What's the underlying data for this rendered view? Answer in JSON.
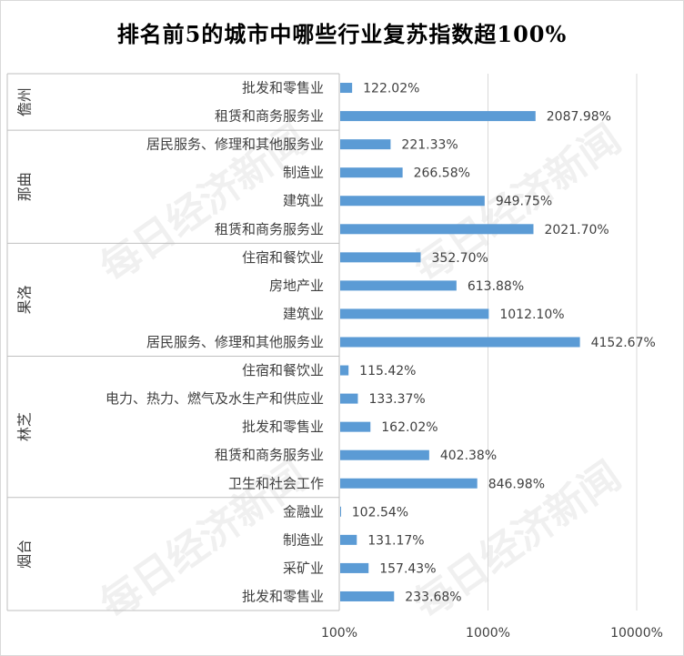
{
  "chart_data": {
    "type": "bar",
    "orientation": "horizontal",
    "title": "排名前5的城市中哪些行业复苏指数超100%",
    "x_scale": "log",
    "xlim": [
      100,
      10000
    ],
    "x_ticks": [
      100,
      1000,
      10000
    ],
    "x_tick_labels": [
      "100%",
      "1000%",
      "10000%"
    ],
    "grid": true,
    "legend": "none",
    "bar_color": "#5b9bd5",
    "groups": [
      {
        "name": "儋州",
        "rows": [
          {
            "category": "批发和零售业",
            "value": 122.02,
            "label": "122.02%"
          },
          {
            "category": "租赁和商务服务业",
            "value": 2087.98,
            "label": "2087.98%"
          }
        ]
      },
      {
        "name": "那曲",
        "rows": [
          {
            "category": "居民服务、修理和其他服务业",
            "value": 221.33,
            "label": "221.33%"
          },
          {
            "category": "制造业",
            "value": 266.58,
            "label": "266.58%"
          },
          {
            "category": "建筑业",
            "value": 949.75,
            "label": "949.75%"
          },
          {
            "category": "租赁和商务服务业",
            "value": 2021.7,
            "label": "2021.70%"
          }
        ]
      },
      {
        "name": "果洛",
        "rows": [
          {
            "category": "住宿和餐饮业",
            "value": 352.7,
            "label": "352.70%"
          },
          {
            "category": "房地产业",
            "value": 613.88,
            "label": "613.88%"
          },
          {
            "category": "建筑业",
            "value": 1012.1,
            "label": "1012.10%"
          },
          {
            "category": "居民服务、修理和其他服务业",
            "value": 4152.67,
            "label": "4152.67%"
          }
        ]
      },
      {
        "name": "林芝",
        "rows": [
          {
            "category": "住宿和餐饮业",
            "value": 115.42,
            "label": "115.42%"
          },
          {
            "category": "电力、热力、燃气及水生产和供应业",
            "value": 133.37,
            "label": "133.37%"
          },
          {
            "category": "批发和零售业",
            "value": 162.02,
            "label": "162.02%"
          },
          {
            "category": "租赁和商务服务业",
            "value": 402.38,
            "label": "402.38%"
          },
          {
            "category": "卫生和社会工作",
            "value": 846.98,
            "label": "846.98%"
          }
        ]
      },
      {
        "name": "烟台",
        "rows": [
          {
            "category": "金融业",
            "value": 102.54,
            "label": "102.54%"
          },
          {
            "category": "制造业",
            "value": 131.17,
            "label": "131.17%"
          },
          {
            "category": "采矿业",
            "value": 157.43,
            "label": "157.43%"
          },
          {
            "category": "批发和零售业",
            "value": 233.68,
            "label": "233.68%"
          }
        ]
      }
    ]
  },
  "watermark": {
    "text": "每日经济新闻"
  }
}
